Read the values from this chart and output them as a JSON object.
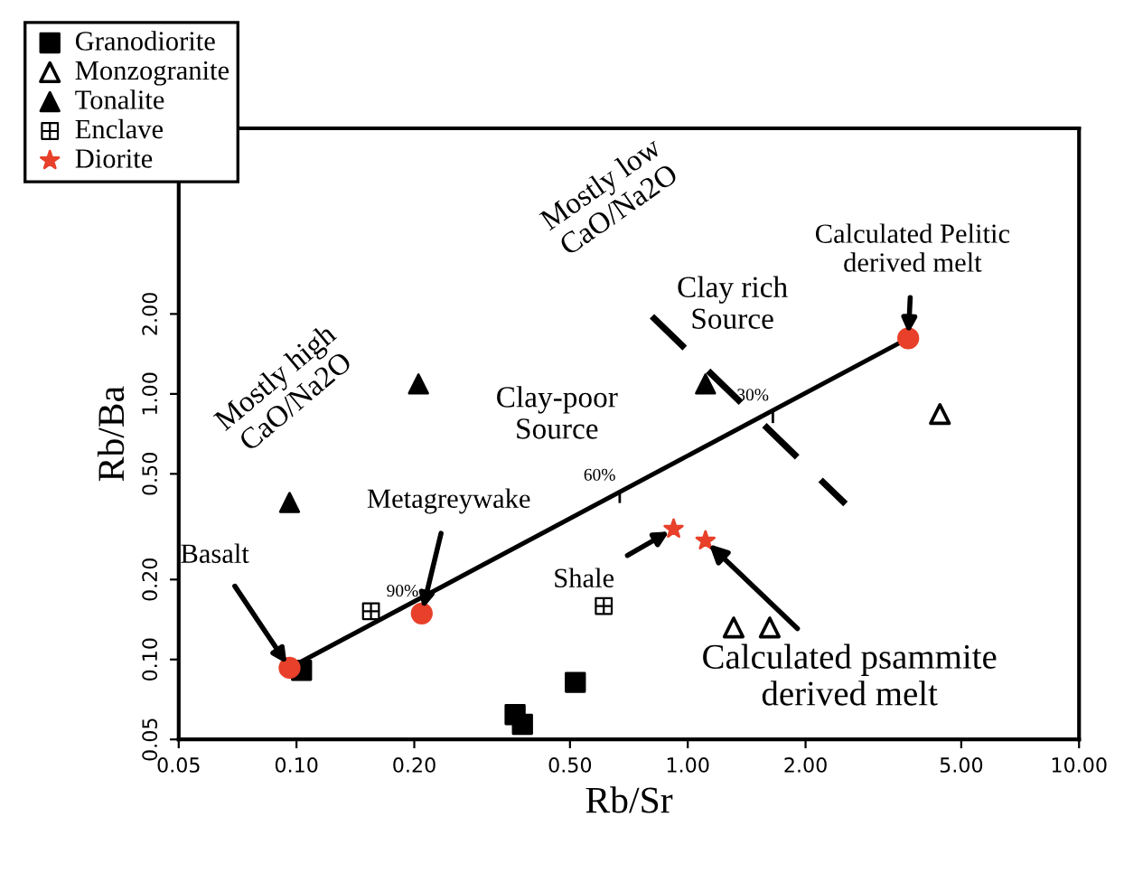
{
  "chart_data": {
    "type": "scatter",
    "xlabel": "Rb/Sr",
    "ylabel": "Rb/Ba",
    "log": "xy",
    "xlim": [
      0.05,
      10
    ],
    "ylim": [
      0.05,
      10
    ],
    "xticks": [
      {
        "value": 0.05,
        "label": "0.05"
      },
      {
        "value": 0.1,
        "label": "0.10"
      },
      {
        "value": 0.2,
        "label": "0.20"
      },
      {
        "value": 0.5,
        "label": "0.50"
      },
      {
        "value": 1,
        "label": "1.00"
      },
      {
        "value": 2,
        "label": "2.00"
      },
      {
        "value": 5,
        "label": "5.00"
      },
      {
        "value": 10,
        "label": "10.00"
      }
    ],
    "yticks": [
      {
        "value": 0.05,
        "label": "0.05"
      },
      {
        "value": 0.1,
        "label": "0.10"
      },
      {
        "value": 0.2,
        "label": "0.20"
      },
      {
        "value": 0.5,
        "label": "0.50"
      },
      {
        "value": 1,
        "label": "1.00"
      },
      {
        "value": 2,
        "label": "2.00"
      }
    ],
    "grid": false,
    "legend": "top left",
    "series": [
      {
        "name": "Granodiorite",
        "marker": "square",
        "color": "#000000",
        "x": [
          0.103,
          0.516,
          0.362,
          0.378
        ],
        "values": [
          0.091,
          0.082,
          0.062,
          0.057
        ]
      },
      {
        "name": "Monzogranite",
        "marker": "triangle_open",
        "color": "#000000",
        "x": [
          4.41,
          1.31,
          1.62
        ],
        "values": [
          0.84,
          0.132,
          0.132
        ]
      },
      {
        "name": "Tonalite",
        "marker": "triangle",
        "color": "#000000",
        "x": [
          0.205,
          0.096,
          1.11
        ],
        "values": [
          1.09,
          0.39,
          1.09
        ]
      },
      {
        "name": "Enclave",
        "marker": "cross",
        "color": "#000000",
        "x": [
          0.155,
          0.61
        ],
        "values": [
          0.152,
          0.159
        ]
      },
      {
        "name": "Diorite",
        "marker": "star",
        "color": "#e8402a",
        "x": [
          0.92,
          1.11
        ],
        "values": [
          0.31,
          0.28
        ]
      },
      {
        "type": "line",
        "marker": "none",
        "line_style": "solid",
        "color": "#000000",
        "x": [
          0.096,
          3.66
        ],
        "values": [
          0.093,
          1.62
        ]
      },
      {
        "type": "line",
        "marker": "none",
        "line_style": "dashed",
        "color": "#000000",
        "x": [
          0.81,
          2.53
        ],
        "values": [
          1.96,
          0.385
        ]
      },
      {
        "marker": "circle",
        "color": "#e8402a",
        "x": [
          0.096,
          0.209,
          3.66
        ],
        "values": [
          0.093,
          0.149,
          1.62
        ]
      }
    ],
    "annotations": [
      {
        "text": "Basalt",
        "x": 0.096,
        "y": 0.093
      },
      {
        "text": "Metagreywake",
        "x": 0.209,
        "y": 0.149
      },
      {
        "text": "Shale",
        "x": 0.92,
        "y": 0.31
      },
      {
        "text": "Calculated psammite\nderived melt",
        "x": 1.11,
        "y": 0.28
      },
      {
        "text": "Calculated Pelitic\nderived melt",
        "x": 3.66,
        "y": 1.62
      },
      {
        "text": "90%",
        "x": 0.21,
        "y": 0.15
      },
      {
        "text": "60%",
        "x": 0.67,
        "y": 0.41
      },
      {
        "text": "30%",
        "x": 1.65,
        "y": 0.82
      },
      "Mostly high\nCaO/Na2O",
      "Mostly low\nCaO/Na2O",
      "Clay-poor\nSource",
      "Clay rich\nSource"
    ]
  }
}
